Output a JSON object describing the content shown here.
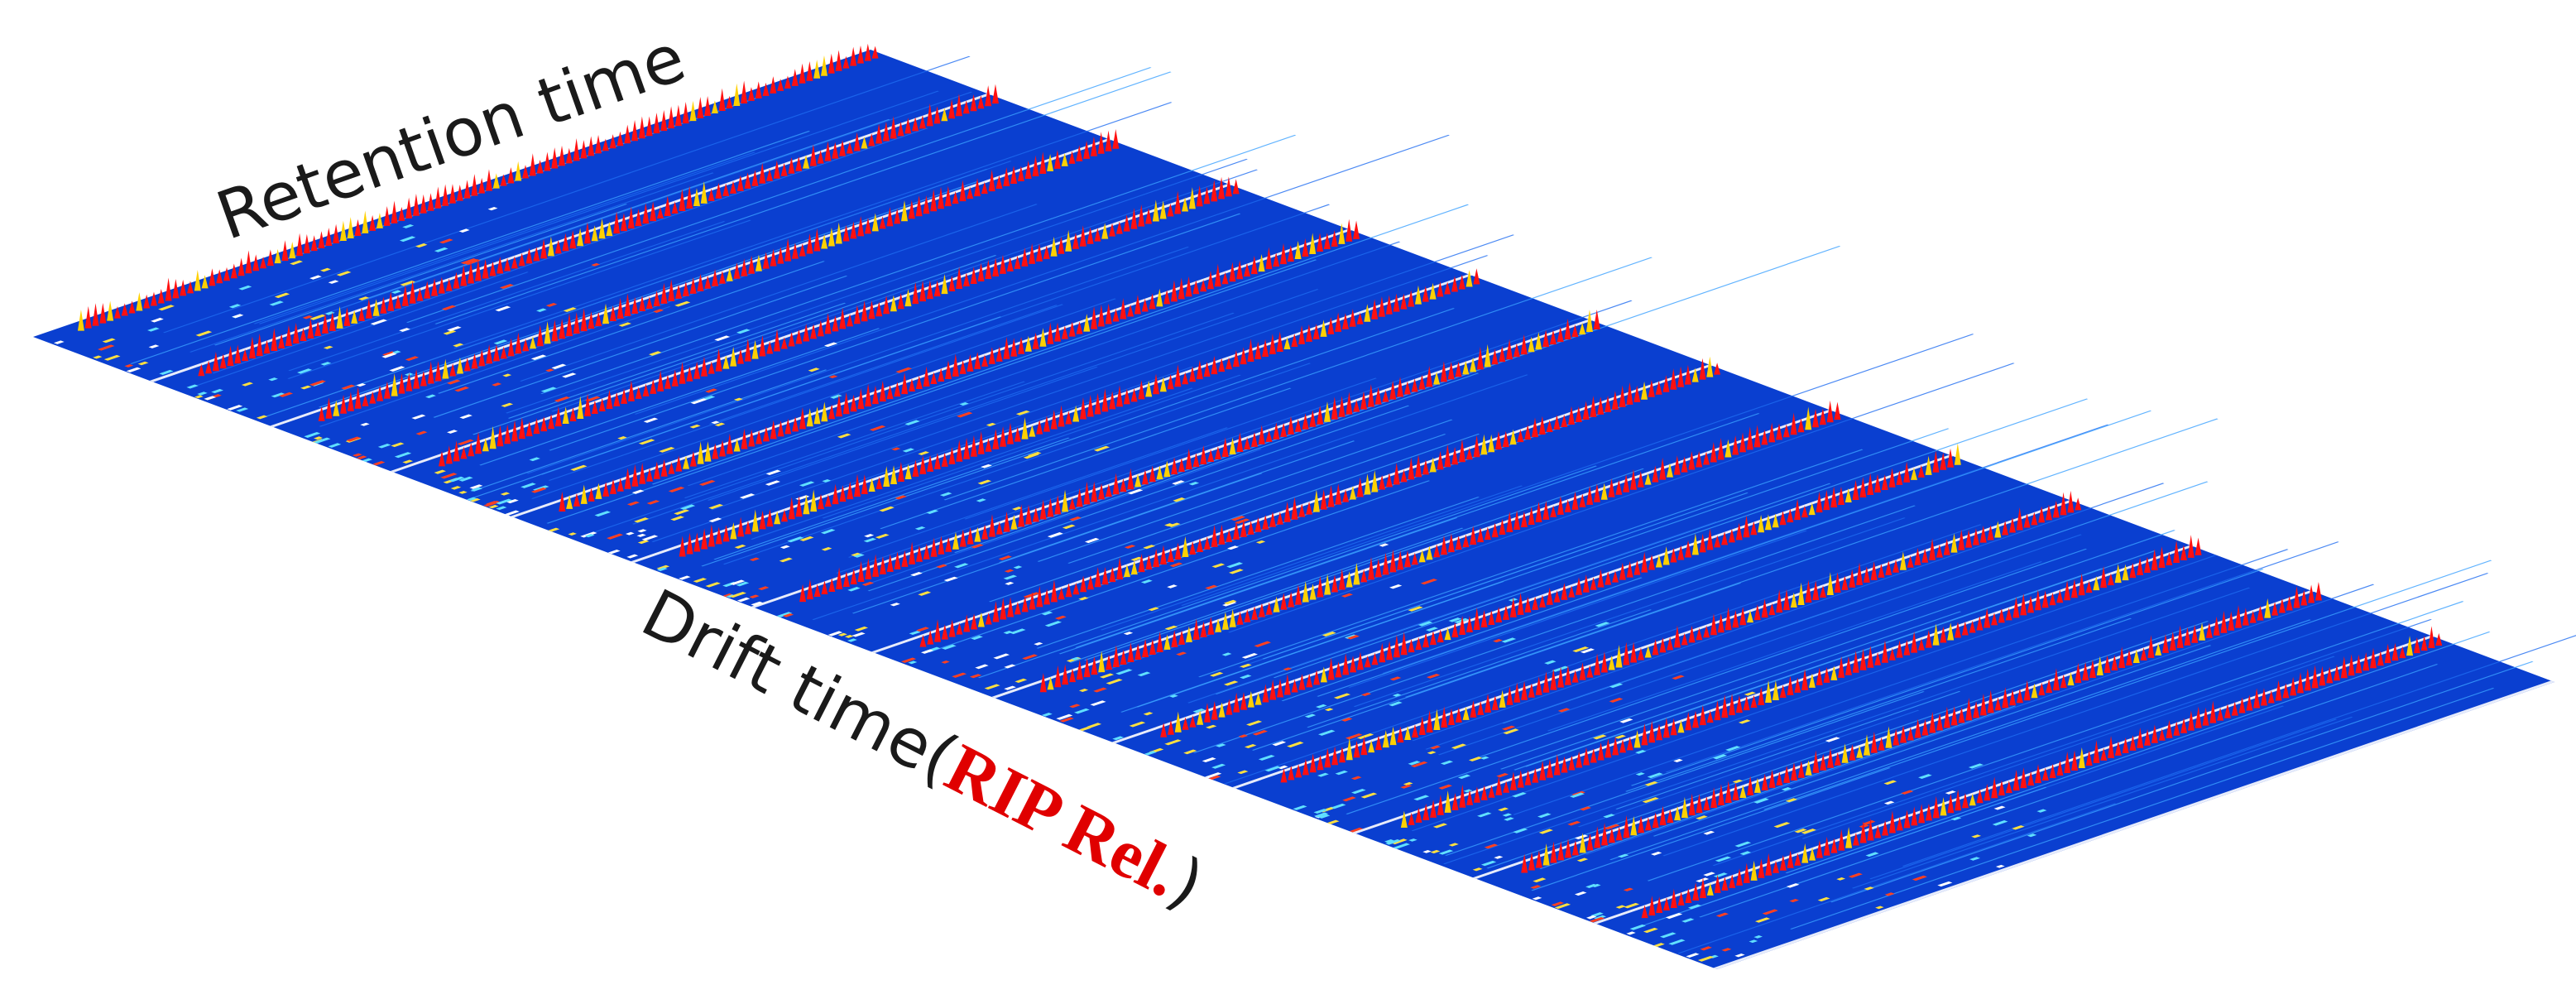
{
  "labels": {
    "retention_axis": "Retention time",
    "drift_axis": "Drift time(",
    "drift_axis_unit": "RIP Rel.",
    "drift_axis_close": ")"
  }
}
